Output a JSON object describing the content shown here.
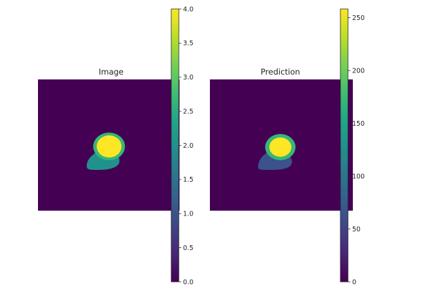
{
  "chart_data": [
    {
      "type": "heatmap",
      "title": "Image",
      "colormap": "viridis",
      "background": "#440154",
      "regions": [
        {
          "label_value": 1.5,
          "color": "#21918c"
        },
        {
          "label_value": 3.0,
          "color": "#35b779"
        },
        {
          "label_value": 4.0,
          "color": "#fde725"
        }
      ],
      "colorbar": {
        "min": 0,
        "max": 4,
        "ticks": [
          "0.0",
          "0.5",
          "1.0",
          "1.5",
          "2.0",
          "2.5",
          "3.0",
          "3.5",
          "4.0"
        ]
      }
    },
    {
      "type": "heatmap",
      "title": "Prediction",
      "colormap": "viridis",
      "background": "#440154",
      "regions": [
        {
          "label_value": 85,
          "color": "#3b528b"
        },
        {
          "label_value": 170,
          "color": "#35b779"
        },
        {
          "label_value": 255,
          "color": "#fde725"
        }
      ],
      "colorbar": {
        "min": 0,
        "max": 255,
        "ticks": [
          "0",
          "50",
          "100",
          "150",
          "200",
          "250"
        ]
      }
    }
  ]
}
